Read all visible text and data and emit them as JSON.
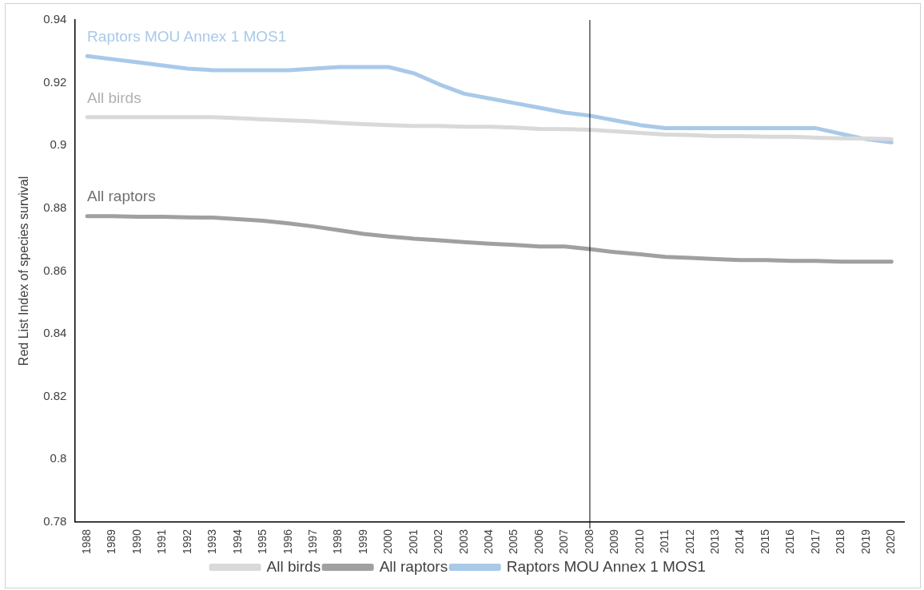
{
  "chart_data": {
    "type": "line",
    "ylabel": "Red List Index of species survival",
    "categories": [
      "1988",
      "1989",
      "1990",
      "1991",
      "1992",
      "1993",
      "1994",
      "1995",
      "1996",
      "1997",
      "1998",
      "1999",
      "2000",
      "2001",
      "2002",
      "2003",
      "2004",
      "2005",
      "2006",
      "2007",
      "2008",
      "2009",
      "2010",
      "2011",
      "2012",
      "2013",
      "2014",
      "2015",
      "2016",
      "2017",
      "2018",
      "2019",
      "2020"
    ],
    "series": [
      {
        "name": "All birds",
        "color": "#d9d9d9",
        "values": [
          0.909,
          0.909,
          0.909,
          0.909,
          0.909,
          0.909,
          0.9087,
          0.9083,
          0.908,
          0.9077,
          0.9072,
          0.9068,
          0.9065,
          0.9062,
          0.9062,
          0.906,
          0.906,
          0.9057,
          0.9053,
          0.9052,
          0.905,
          0.9045,
          0.904,
          0.9035,
          0.9033,
          0.903,
          0.903,
          0.9028,
          0.9028,
          0.9025,
          0.9023,
          0.9022,
          0.902
        ]
      },
      {
        "name": "All raptors",
        "color": "#a0a0a0",
        "values": [
          0.8775,
          0.8775,
          0.8773,
          0.8773,
          0.8771,
          0.877,
          0.8765,
          0.876,
          0.8752,
          0.8742,
          0.873,
          0.8718,
          0.871,
          0.8703,
          0.8698,
          0.8692,
          0.8687,
          0.8683,
          0.8678,
          0.8678,
          0.867,
          0.866,
          0.8653,
          0.8645,
          0.8642,
          0.8638,
          0.8635,
          0.8635,
          0.8632,
          0.8632,
          0.863,
          0.863,
          0.863
        ]
      },
      {
        "name": "Raptors MOU Annex 1 MOS1",
        "color": "#a9c9e9",
        "values": [
          0.9285,
          0.9275,
          0.9265,
          0.9255,
          0.9245,
          0.924,
          0.924,
          0.924,
          0.924,
          0.9245,
          0.925,
          0.925,
          0.925,
          0.923,
          0.9195,
          0.9165,
          0.915,
          0.9135,
          0.912,
          0.9105,
          0.9095,
          0.908,
          0.9065,
          0.9055,
          0.9055,
          0.9055,
          0.9055,
          0.9055,
          0.9055,
          0.9055,
          0.9037,
          0.902,
          0.901
        ]
      }
    ],
    "ylim": [
      0.78,
      0.94
    ],
    "yticks": [
      0.78,
      0.8,
      0.82,
      0.84,
      0.86,
      0.88,
      0.9,
      0.92,
      0.94
    ],
    "ref_lines": [
      {
        "axis": "x",
        "value": "2008",
        "color": "#000000"
      }
    ],
    "grid": false,
    "legend": "bottom",
    "marker": "none",
    "line_style": "solid"
  }
}
